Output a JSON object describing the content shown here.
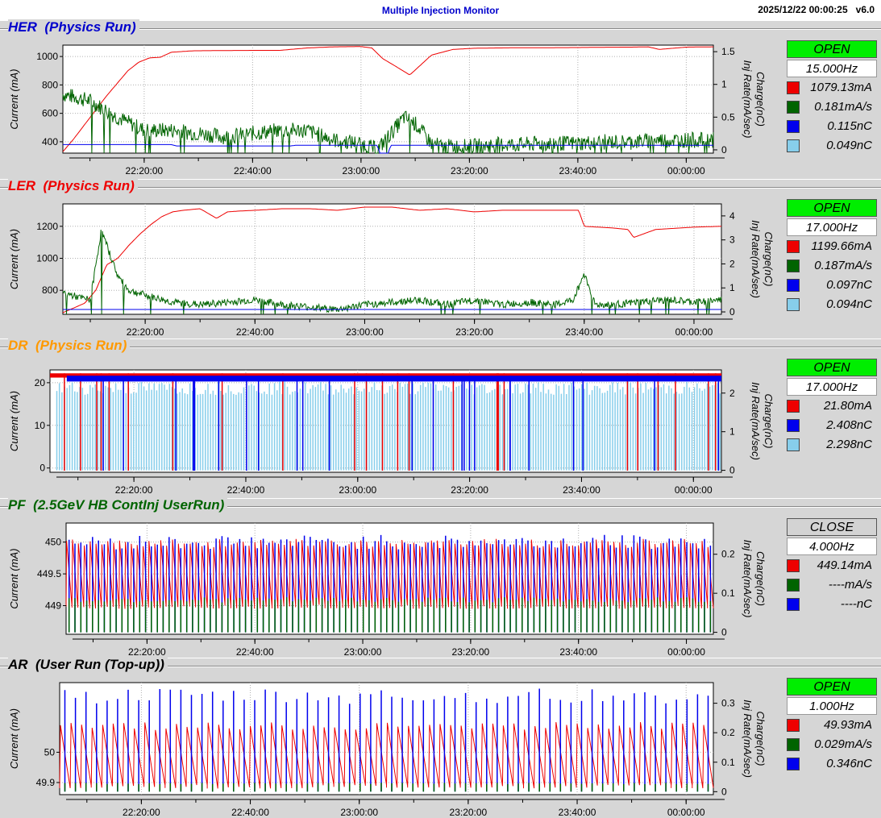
{
  "header": {
    "title": "Multiple Injection Monitor",
    "timestamp": "2025/12/22 00:00:25",
    "version": "v6.0"
  },
  "colors": {
    "current": "#ee0000",
    "inj_rate": "#006400",
    "charge_a": "#0000ee",
    "charge_b": "#87ceeb",
    "open": "#00ee00",
    "close": "#d3d3d3"
  },
  "chart_data": [
    {
      "id": "HER",
      "type": "line",
      "title": "HER  (Physics Run)",
      "title_color": "#0000cc",
      "ylabel": "Current (mA)",
      "y2label_top": "Charge(nC)",
      "y2label_bottom": "Inj Rate(mA/sec)",
      "ylim": [
        320,
        1080
      ],
      "yticks": [
        {
          "v": 400,
          "label": "400"
        },
        {
          "v": 600,
          "label": "600"
        },
        {
          "v": 800,
          "label": "800"
        },
        {
          "v": 1000,
          "label": "1000"
        }
      ],
      "y2lim": [
        -0.05,
        1.6
      ],
      "y2ticks": [
        {
          "v": 0,
          "label": "0"
        },
        {
          "v": 0.5,
          "label": "0.5"
        },
        {
          "v": 1,
          "label": "1"
        },
        {
          "v": 1.5,
          "label": "1.5"
        }
      ],
      "xlim": [
        0,
        120
      ],
      "xticks": [
        {
          "v": 15,
          "label": "22:20:00"
        },
        {
          "v": 35,
          "label": "22:40:00"
        },
        {
          "v": 55,
          "label": "23:00:00"
        },
        {
          "v": 75,
          "label": "23:20:00"
        },
        {
          "v": 95,
          "label": "23:40:00"
        },
        {
          "v": 115,
          "label": "00:00:00"
        }
      ],
      "status": "OPEN",
      "status_color": "#00ee00",
      "rep_rate": "15.000Hz",
      "legend": [
        {
          "color": "#ee0000",
          "value": "1079.13mA"
        },
        {
          "color": "#006400",
          "value": "0.181mA/s"
        },
        {
          "color": "#0000ee",
          "value": "0.115nC"
        },
        {
          "color": "#87ceeb",
          "value": "0.049nC"
        }
      ],
      "series": [
        {
          "name": "current",
          "color": "#ee0000",
          "axis": "left",
          "style": "line",
          "x": [
            0,
            2,
            4,
            6,
            8,
            10,
            12,
            14,
            16,
            18,
            20,
            24,
            30,
            35,
            40,
            45,
            50,
            55,
            57,
            59,
            61,
            64,
            68,
            72,
            76,
            80,
            85,
            90,
            95,
            100,
            105,
            108,
            110,
            115,
            120
          ],
          "y": [
            330,
            420,
            520,
            620,
            720,
            810,
            900,
            960,
            990,
            995,
            1030,
            1040,
            1042,
            1043,
            1043,
            1060,
            1068,
            1070,
            1060,
            985,
            940,
            870,
            1010,
            1050,
            1058,
            1060,
            1062,
            1062,
            1063,
            1065,
            1066,
            1068,
            1050,
            1066,
            1068
          ]
        },
        {
          "name": "inj_rate",
          "color": "#006400",
          "axis": "right",
          "style": "noisy",
          "x": [
            0,
            5,
            10,
            15,
            20,
            25,
            30,
            35,
            40,
            45,
            50,
            55,
            58,
            63,
            65,
            68,
            70,
            75,
            80,
            85,
            90,
            95,
            100,
            105,
            110,
            115,
            120
          ],
          "y": [
            0.85,
            0.75,
            0.5,
            0.3,
            0.3,
            0.25,
            0.2,
            0.25,
            0.3,
            0.3,
            0.15,
            0.1,
            0,
            0.5,
            0.4,
            0.1,
            0.05,
            0.05,
            0.08,
            0.08,
            0.1,
            0.1,
            0.12,
            0.12,
            0.15,
            0.15,
            0.15
          ],
          "noise": 0.12,
          "drops": 1
        },
        {
          "name": "charge_a",
          "color": "#0000ee",
          "axis": "right",
          "style": "line",
          "x": [
            0,
            20,
            21,
            42,
            43,
            58,
            58.5,
            60,
            60.5,
            120
          ],
          "y": [
            0.08,
            0.08,
            0.06,
            0.06,
            0.07,
            0.07,
            -0.05,
            -0.05,
            0.07,
            0.07
          ]
        }
      ]
    },
    {
      "id": "LER",
      "type": "line",
      "title": "LER  (Physics Run)",
      "title_color": "#ee0000",
      "ylabel": "Current (mA)",
      "y2label_top": "Charge(nC)",
      "y2label_bottom": "Inj Rate(mA/sec)",
      "ylim": [
        650,
        1340
      ],
      "yticks": [
        {
          "v": 800,
          "label": "800"
        },
        {
          "v": 1000,
          "label": "1000"
        },
        {
          "v": 1200,
          "label": "1200"
        }
      ],
      "y2lim": [
        -0.1,
        4.5
      ],
      "y2ticks": [
        {
          "v": 0,
          "label": "0"
        },
        {
          "v": 1,
          "label": "1"
        },
        {
          "v": 2,
          "label": "2"
        },
        {
          "v": 3,
          "label": "3"
        },
        {
          "v": 4,
          "label": "4"
        }
      ],
      "xlim": [
        0,
        120
      ],
      "xticks": [
        {
          "v": 15,
          "label": "22:20:00"
        },
        {
          "v": 35,
          "label": "22:40:00"
        },
        {
          "v": 55,
          "label": "23:00:00"
        },
        {
          "v": 75,
          "label": "23:20:00"
        },
        {
          "v": 95,
          "label": "23:40:00"
        },
        {
          "v": 115,
          "label": "00:00:00"
        }
      ],
      "status": "OPEN",
      "status_color": "#00ee00",
      "rep_rate": "17.000Hz",
      "legend": [
        {
          "color": "#ee0000",
          "value": "1199.66mA"
        },
        {
          "color": "#006400",
          "value": "0.187mA/s"
        },
        {
          "color": "#0000ee",
          "value": "0.097nC"
        },
        {
          "color": "#87ceeb",
          "value": "0.094nC"
        }
      ],
      "series": [
        {
          "name": "current",
          "color": "#ee0000",
          "axis": "left",
          "style": "line",
          "x": [
            0,
            2,
            4,
            6,
            8,
            10,
            12,
            14,
            16,
            18,
            20,
            22,
            25,
            28,
            30,
            32,
            35,
            40,
            45,
            50,
            55,
            60,
            65,
            70,
            75,
            80,
            85,
            90,
            94,
            95,
            100,
            103,
            104,
            108,
            115,
            120
          ],
          "y": [
            660,
            690,
            720,
            800,
            960,
            1000,
            1080,
            1150,
            1210,
            1260,
            1290,
            1300,
            1310,
            1250,
            1290,
            1295,
            1300,
            1310,
            1310,
            1300,
            1320,
            1320,
            1300,
            1310,
            1290,
            1300,
            1300,
            1300,
            1300,
            1200,
            1190,
            1180,
            1130,
            1180,
            1195,
            1200
          ]
        },
        {
          "name": "inj_rate",
          "color": "#006400",
          "axis": "right",
          "style": "noisy",
          "x": [
            0,
            3,
            5,
            7,
            10,
            12,
            15,
            20,
            25,
            30,
            35,
            40,
            45,
            50,
            55,
            60,
            65,
            70,
            75,
            80,
            85,
            90,
            93,
            95,
            97,
            100,
            105,
            110,
            115,
            120
          ],
          "y": [
            0.8,
            0.6,
            0.5,
            3.4,
            1.5,
            0.9,
            0.7,
            0.4,
            0.3,
            0.4,
            0.5,
            0.3,
            0.2,
            0.1,
            0.3,
            0.4,
            0.5,
            0.3,
            0.5,
            0.3,
            0.4,
            0.3,
            0.5,
            1.6,
            0.3,
            0.3,
            0.4,
            0.5,
            0.4,
            0.5
          ],
          "noise": 0.15,
          "drops": 1
        },
        {
          "name": "charge_a",
          "color": "#0000ee",
          "axis": "right",
          "style": "line",
          "x": [
            0,
            120
          ],
          "y": [
            0.1,
            0.1
          ]
        }
      ]
    },
    {
      "id": "DR",
      "type": "line",
      "title": "DR  (Physics Run)",
      "title_color": "#ff9900",
      "ylabel": "Current (mA)",
      "y2label_top": "Charge(nC)",
      "y2label_bottom": "Inj Rate(mA/sec)",
      "ylim": [
        -1,
        23
      ],
      "yticks": [
        {
          "v": 0,
          "label": "0"
        },
        {
          "v": 10,
          "label": "10"
        },
        {
          "v": 20,
          "label": "20"
        }
      ],
      "y2lim": [
        -0.05,
        2.6
      ],
      "y2ticks": [
        {
          "v": 0,
          "label": "0"
        },
        {
          "v": 1,
          "label": "1"
        },
        {
          "v": 2,
          "label": "2"
        }
      ],
      "xlim": [
        0,
        120
      ],
      "xticks": [
        {
          "v": 15,
          "label": "22:20:00"
        },
        {
          "v": 35,
          "label": "22:40:00"
        },
        {
          "v": 55,
          "label": "23:00:00"
        },
        {
          "v": 75,
          "label": "23:20:00"
        },
        {
          "v": 95,
          "label": "23:40:00"
        },
        {
          "v": 115,
          "label": "00:00:00"
        }
      ],
      "status": "OPEN",
      "status_color": "#00ee00",
      "rep_rate": "17.000Hz",
      "legend": [
        {
          "color": "#ee0000",
          "value": "21.80mA"
        },
        {
          "color": "#0000ee",
          "value": "2.408nC"
        },
        {
          "color": "#87ceeb",
          "value": "2.298nC"
        }
      ],
      "series": [
        {
          "name": "charge_b",
          "color": "#87ceeb",
          "axis": "right",
          "style": "spikes",
          "x": [
            1,
            120
          ],
          "y": [
            0,
            2.3
          ],
          "spike_count": 260
        },
        {
          "name": "current",
          "color": "#ee0000",
          "axis": "left",
          "style": "band",
          "x": [
            0,
            120
          ],
          "y": [
            21.2,
            22.2
          ]
        },
        {
          "name": "charge_a",
          "color": "#0000ee",
          "axis": "right",
          "style": "band",
          "x": [
            3,
            120
          ],
          "y": [
            2.3,
            2.45
          ]
        }
      ]
    },
    {
      "id": "PF",
      "type": "line",
      "title": "PF  (2.5GeV HB ContInj UserRun)",
      "title_color": "#006400",
      "ylabel": "Current (mA)",
      "y2label_top": "Charge(nC)",
      "y2label_bottom": "Inj Rate(mA/sec)",
      "ylim": [
        448.55,
        450.3
      ],
      "yticks": [
        {
          "v": 449,
          "label": "449"
        },
        {
          "v": 449.5,
          "label": "449.5"
        },
        {
          "v": 450,
          "label": "450"
        }
      ],
      "y2lim": [
        -0.005,
        0.28
      ],
      "y2ticks": [
        {
          "v": 0,
          "label": "0"
        },
        {
          "v": 0.1,
          "label": "0.1"
        },
        {
          "v": 0.2,
          "label": "0.2"
        }
      ],
      "xlim": [
        0,
        120
      ],
      "xticks": [
        {
          "v": 15,
          "label": "22:20:00"
        },
        {
          "v": 35,
          "label": "22:40:00"
        },
        {
          "v": 55,
          "label": "23:00:00"
        },
        {
          "v": 75,
          "label": "23:20:00"
        },
        {
          "v": 95,
          "label": "23:40:00"
        },
        {
          "v": 115,
          "label": "00:00:00"
        }
      ],
      "status": "CLOSE",
      "status_color": "#d3d3d3",
      "rep_rate": "4.000Hz",
      "legend": [
        {
          "color": "#ee0000",
          "value": "449.14mA"
        },
        {
          "color": "#006400",
          "value": "----mA/s"
        },
        {
          "color": "#0000ee",
          "value": "----nC"
        }
      ],
      "series": [
        {
          "name": "current",
          "color": "#ee0000",
          "axis": "left",
          "style": "sawtooth",
          "x": [
            0,
            120
          ],
          "y": [
            448.95,
            450.05
          ],
          "cycles": 110
        },
        {
          "name": "charge_a",
          "color": "#0000ee",
          "axis": "right",
          "style": "spikes",
          "x": [
            0,
            120
          ],
          "y": [
            0,
            0.25
          ],
          "spike_count": 110
        },
        {
          "name": "inj_rate",
          "color": "#006400",
          "axis": "right",
          "style": "spikes",
          "x": [
            0,
            120
          ],
          "y": [
            0,
            0.09
          ],
          "spike_count": 110
        }
      ]
    },
    {
      "id": "AR",
      "type": "line",
      "title": "AR  (User Run (Top-up))",
      "title_color": "#000000",
      "ylabel": "Current (mA)",
      "y2label_top": "Charge(nC)",
      "y2label_bottom": "Inj Rate(mA/sec)",
      "ylim": [
        49.86,
        50.23
      ],
      "yticks": [
        {
          "v": 49.9,
          "label": "49.9"
        },
        {
          "v": 50,
          "label": "50"
        }
      ],
      "y2lim": [
        -0.01,
        0.37
      ],
      "y2ticks": [
        {
          "v": 0,
          "label": "0"
        },
        {
          "v": 0.1,
          "label": "0.1"
        },
        {
          "v": 0.2,
          "label": "0.2"
        },
        {
          "v": 0.3,
          "label": "0.3"
        }
      ],
      "xlim": [
        0,
        120
      ],
      "xticks": [
        {
          "v": 15,
          "label": "22:20:00"
        },
        {
          "v": 35,
          "label": "22:40:00"
        },
        {
          "v": 55,
          "label": "23:00:00"
        },
        {
          "v": 75,
          "label": "23:20:00"
        },
        {
          "v": 95,
          "label": "23:40:00"
        },
        {
          "v": 115,
          "label": "00:00:00"
        }
      ],
      "status": "OPEN",
      "status_color": "#00ee00",
      "rep_rate": "1.000Hz",
      "legend": [
        {
          "color": "#ee0000",
          "value": "49.93mA"
        },
        {
          "color": "#006400",
          "value": "0.029mA/s"
        },
        {
          "color": "#0000ee",
          "value": "0.346nC"
        }
      ],
      "series": [
        {
          "name": "current",
          "color": "#ee0000",
          "axis": "left",
          "style": "sawtooth",
          "x": [
            0,
            120
          ],
          "y": [
            49.88,
            50.1
          ],
          "cycles": 62
        },
        {
          "name": "charge_a",
          "color": "#0000ee",
          "axis": "right",
          "style": "spikes",
          "x": [
            0,
            120
          ],
          "y": [
            0,
            0.35
          ],
          "spike_count": 62
        },
        {
          "name": "inj_rate",
          "color": "#006400",
          "axis": "right",
          "style": "spikes",
          "x": [
            0,
            120
          ],
          "y": [
            0,
            0.03
          ],
          "spike_count": 62
        }
      ]
    }
  ]
}
